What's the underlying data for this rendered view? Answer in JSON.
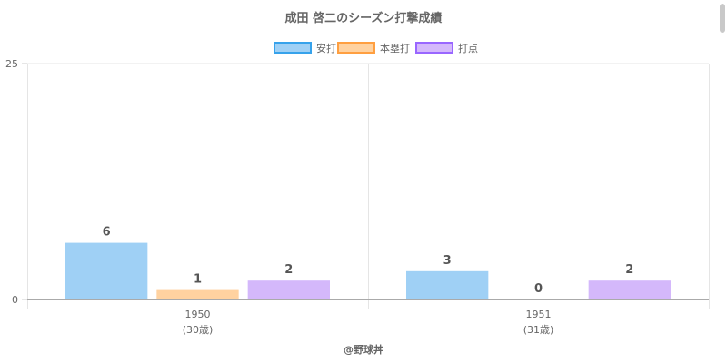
{
  "chart_data": {
    "type": "bar",
    "title": "成田 啓二のシーズン打撃成績",
    "categories": [
      {
        "year": "1950",
        "age": "(30歳)"
      },
      {
        "year": "1951",
        "age": "(31歳)"
      }
    ],
    "series": [
      {
        "name": "安打",
        "values": [
          6,
          3
        ],
        "fill": "#9fd0f5",
        "stroke": "#36a2eb"
      },
      {
        "name": "本塁打",
        "values": [
          1,
          0
        ],
        "fill": "#ffd2a0",
        "stroke": "#ff9f40"
      },
      {
        "name": "打点",
        "values": [
          2,
          2
        ],
        "fill": "#d4b8fb",
        "stroke": "#9966ff"
      }
    ],
    "ylim": [
      0,
      25
    ],
    "yticks": [
      "0",
      "25"
    ],
    "legend_position": "top",
    "grid": true,
    "footer": "@野球丼"
  }
}
